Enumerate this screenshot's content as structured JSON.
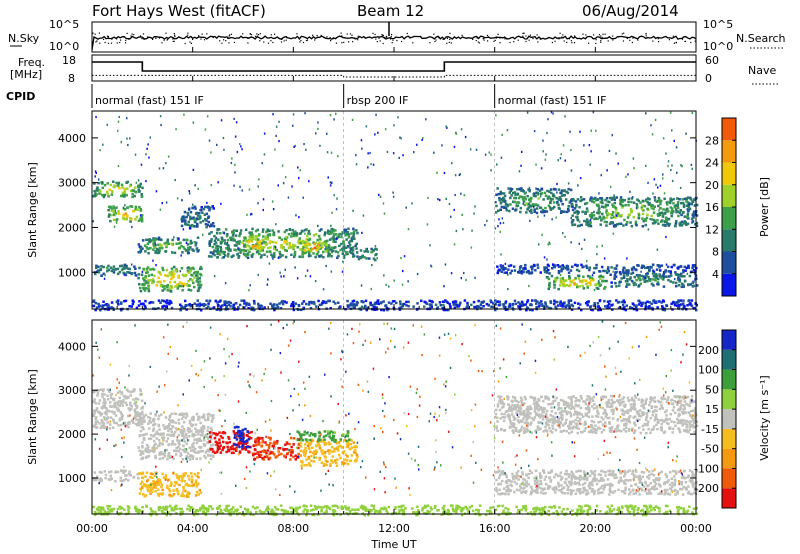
{
  "header": {
    "station": "Fort Hays West (fitACF)",
    "beam": "Beam 12",
    "date": "06/Aug/2014"
  },
  "colors": {
    "power": [
      "#0a17e8",
      "#1d4f9e",
      "#2a7a6a",
      "#3d9f4a",
      "#9fd12a",
      "#f0c808",
      "#f39a0d",
      "#f25a0a",
      "#e80f0f"
    ],
    "velocity": [
      "#e51010",
      "#ef5b0a",
      "#f39a10",
      "#f6bd20",
      "#c0c0bc",
      "#8fd13c",
      "#3c9f3c",
      "#1f6e74",
      "#1426c8"
    ]
  },
  "chart_data": [
    {
      "type": "line",
      "name": "nsky-nsearch-panel",
      "ylabel_left": "N.Sky",
      "ylabel_right": "N.Search",
      "yticks_left": [
        "10^5",
        "10^0"
      ],
      "yticks_right": [
        "10^5",
        "10^0"
      ]
    },
    {
      "type": "line",
      "name": "freq-nave-panel",
      "ylabel_left": "Freq.\n[MHz]",
      "ylabel_right": "Nave",
      "yticks_left": [
        18,
        8
      ],
      "yticks_right": [
        60,
        0
      ],
      "ylim_left": [
        6,
        19
      ],
      "ylim_right": [
        0,
        65
      ],
      "freq_steps": [
        {
          "x0": 0.0,
          "x1": 2.0,
          "y": 15.5
        },
        {
          "x0": 2.0,
          "x1": 14.0,
          "y": 11.0
        },
        {
          "x0": 14.0,
          "x1": 24.0,
          "y": 15.5
        }
      ],
      "nave_steps": [
        {
          "x0": 0.0,
          "x1": 10.0,
          "y": 14
        },
        {
          "x0": 10.0,
          "x1": 14.0,
          "y": 10
        },
        {
          "x0": 14.0,
          "x1": 24.0,
          "y": 14
        }
      ]
    },
    {
      "type": "table",
      "name": "cpid",
      "label": "CPID",
      "segments": [
        {
          "start": 0.0,
          "end": 10.0,
          "text": "normal (fast) 151 IF"
        },
        {
          "start": 10.0,
          "end": 16.0,
          "text": "rbsp 200 IF"
        },
        {
          "start": 16.0,
          "end": 24.0,
          "text": "normal (fast) 151 IF"
        }
      ]
    },
    {
      "type": "heatmap",
      "name": "power-panel",
      "ylabel": "Slant Range [km]",
      "yticks": [
        1000,
        2000,
        3000,
        4000
      ],
      "ylim": [
        180,
        4600
      ],
      "colorbar_label": "Power [dB]",
      "colorbar_ticks": [
        4,
        8,
        12,
        16,
        20,
        24,
        28
      ],
      "colorbar_range": [
        0,
        32
      ],
      "blobs": [
        {
          "x0": 0.0,
          "x1": 2.0,
          "y0": 2700,
          "y1": 3050,
          "v": 20
        },
        {
          "x0": 0.6,
          "x1": 2.0,
          "y0": 2150,
          "y1": 2500,
          "v": 24
        },
        {
          "x0": 0.0,
          "x1": 1.7,
          "y0": 950,
          "y1": 1200,
          "v": 12
        },
        {
          "x0": 1.8,
          "x1": 4.2,
          "y0": 1450,
          "y1": 1800,
          "v": 16
        },
        {
          "x0": 3.5,
          "x1": 4.8,
          "y0": 2000,
          "y1": 2500,
          "v": 10
        },
        {
          "x0": 1.8,
          "x1": 4.3,
          "y0": 600,
          "y1": 1150,
          "v": 22
        },
        {
          "x0": 4.6,
          "x1": 10.5,
          "y0": 1350,
          "y1": 2000,
          "v": 18
        },
        {
          "x0": 6.0,
          "x1": 6.8,
          "y0": 1500,
          "y1": 1800,
          "v": 27
        },
        {
          "x0": 8.2,
          "x1": 9.3,
          "y0": 1450,
          "y1": 1750,
          "v": 27
        },
        {
          "x0": 10.5,
          "x1": 11.3,
          "y0": 1300,
          "y1": 1550,
          "v": 14
        },
        {
          "x0": 16.0,
          "x1": 19.0,
          "y0": 2350,
          "y1": 2900,
          "v": 14
        },
        {
          "x0": 19.0,
          "x1": 24.0,
          "y0": 2050,
          "y1": 2700,
          "v": 16
        },
        {
          "x0": 16.0,
          "x1": 24.0,
          "y0": 1000,
          "y1": 1200,
          "v": 8
        },
        {
          "x0": 18.0,
          "x1": 20.5,
          "y0": 650,
          "y1": 950,
          "v": 22
        },
        {
          "x0": 20.5,
          "x1": 24.0,
          "y0": 700,
          "y1": 1000,
          "v": 12
        },
        {
          "x0": 0.0,
          "x1": 24.0,
          "y0": 180,
          "y1": 400,
          "v": 6
        }
      ]
    },
    {
      "type": "heatmap",
      "name": "velocity-panel",
      "ylabel": "Slant Range [km]",
      "yticks": [
        1000,
        2000,
        3000,
        4000
      ],
      "ylim": [
        180,
        4600
      ],
      "colorbar_label": "Velocity [m s⁻¹]",
      "colorbar_ticks": [
        -200,
        -100,
        -50,
        -15,
        15,
        50,
        100,
        200
      ],
      "blobs": [
        {
          "x0": 0.0,
          "x1": 2.0,
          "y0": 2150,
          "y1": 3050,
          "v": 0
        },
        {
          "x0": 0.0,
          "x1": 1.8,
          "y0": 950,
          "y1": 1200,
          "v": 0
        },
        {
          "x0": 1.8,
          "x1": 4.3,
          "y0": 600,
          "y1": 1150,
          "v": -40
        },
        {
          "x0": 1.8,
          "x1": 4.8,
          "y0": 1450,
          "y1": 2500,
          "v": 0
        },
        {
          "x0": 4.6,
          "x1": 6.3,
          "y0": 1600,
          "y1": 2100,
          "v": -220
        },
        {
          "x0": 6.3,
          "x1": 8.2,
          "y0": 1450,
          "y1": 1950,
          "v": -200
        },
        {
          "x0": 8.2,
          "x1": 10.5,
          "y0": 1300,
          "y1": 1900,
          "v": -40
        },
        {
          "x0": 8.0,
          "x1": 10.2,
          "y0": 1850,
          "y1": 2100,
          "v": 60
        },
        {
          "x0": 5.6,
          "x1": 6.2,
          "y0": 1700,
          "y1": 2200,
          "v": 220
        },
        {
          "x0": 16.0,
          "x1": 24.0,
          "y0": 2050,
          "y1": 2900,
          "v": 0
        },
        {
          "x0": 16.0,
          "x1": 24.0,
          "y0": 650,
          "y1": 1200,
          "v": 0
        },
        {
          "x0": 0.0,
          "x1": 24.0,
          "y0": 180,
          "y1": 400,
          "v": 30
        }
      ]
    }
  ],
  "xaxis": {
    "label": "Time UT",
    "ticks": [
      "00:00",
      "04:00",
      "08:00",
      "12:00",
      "16:00",
      "20:00",
      "00:00"
    ],
    "xlim": [
      0,
      24
    ]
  }
}
